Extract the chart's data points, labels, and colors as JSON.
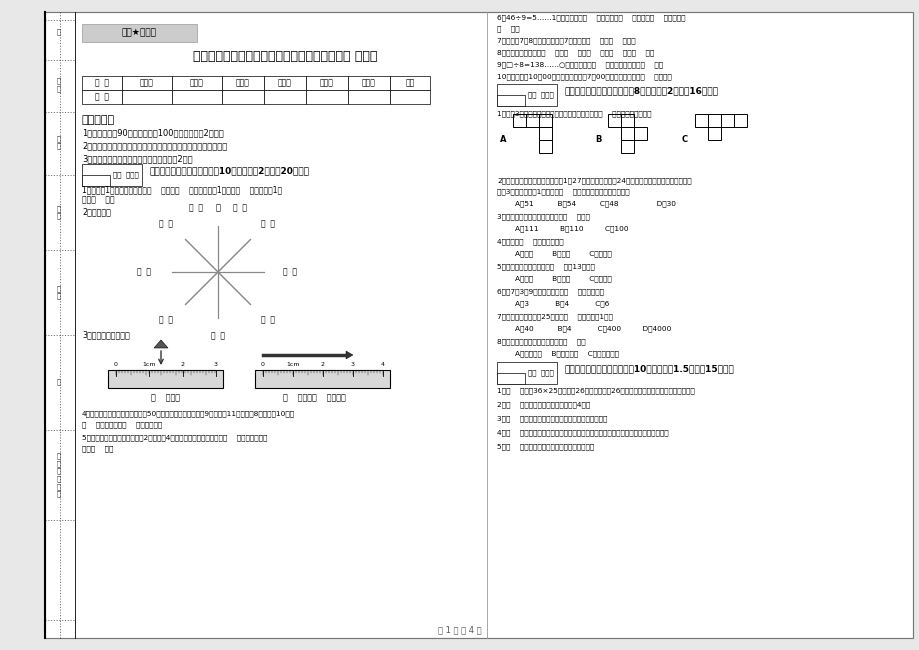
{
  "title": "浙江省实验小学三年级数学下学期开学考试试题 附解析",
  "background_color": "#ffffff",
  "watermark": "绝密★启用前",
  "table_headers": [
    "题  号",
    "填空题",
    "选择题",
    "判断题",
    "计算题",
    "综合题",
    "应用题",
    "总分"
  ],
  "table_row": [
    "得  分",
    "",
    "",
    "",
    "",
    "",
    "",
    ""
  ],
  "footer": "第 1 页 共 4 页",
  "section1_title": "一、用心思考，正确填空（共10小题，每题2分，共20分）。",
  "section2_title": "二、反复比较，慎重选择（共8小题，每题2分，共16分）。",
  "section3_title": "三、仔细推敲，正确判断（共10小题，每题1.5分，共15分）。",
  "exam_rules_title": "考试须知：",
  "exam_rules": [
    "1、考试时间：90分钟，满分为100分（含卷面分2分）。",
    "2、请首先按要求在试卷的指定位置填写您的姓名、班级、学号。",
    "3、不要在试卷上乱写乱画，卷面不整洁扣2分。"
  ],
  "q3_items": [
    "1、（    ）计算36×25时，先把26与相乘，再把26和相乘，最后把两次乘得的结果相加。",
    "2、（    ）正方形的周长是它的边长的4倍。",
    "3、（    ）所有的大月份中，每个月的小月都是双月。",
    "4、（    ）有余除法的验算方法是商乘除数加余数，看得到的结果是否与被除数相等。",
    "5、（    ）长方形的周长就是它四条边长的和。"
  ]
}
